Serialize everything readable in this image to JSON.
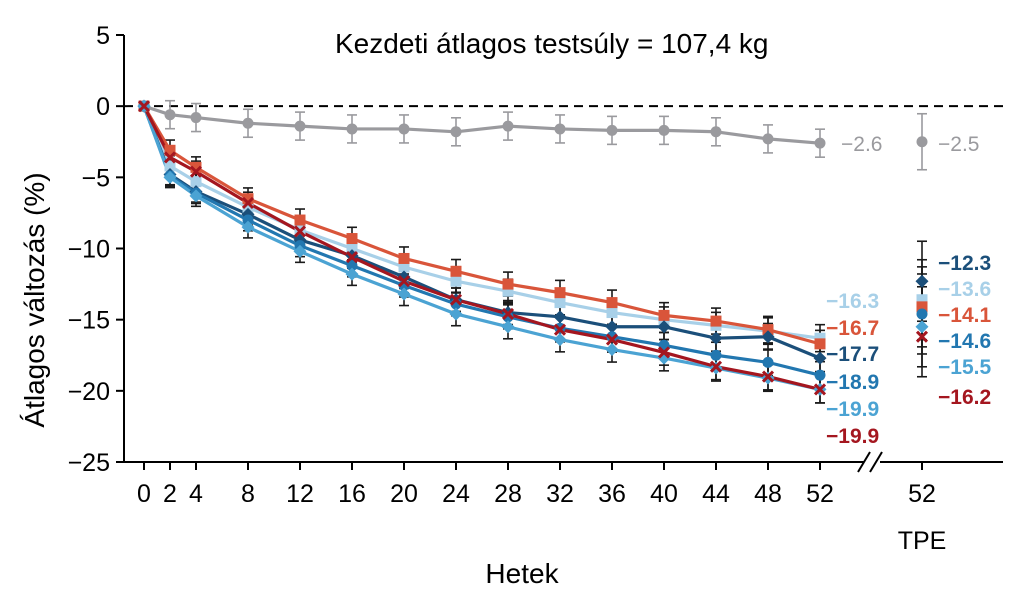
{
  "chart_data": {
    "type": "line",
    "title": "Kezdeti átlagos testsúly = 107,4 kg",
    "xlabel": "Hetek",
    "ylabel": "Átlagos változás (%)",
    "ylim": [
      -25,
      5
    ],
    "yticks": [
      5,
      0,
      -5,
      -10,
      -15,
      -20,
      -25
    ],
    "x": [
      0,
      2,
      4,
      8,
      12,
      16,
      20,
      24,
      28,
      32,
      36,
      40,
      44,
      48,
      52
    ],
    "x_tick_labels": [
      "0",
      "2",
      "4",
      "8",
      "12",
      "16",
      "20",
      "24",
      "28",
      "32",
      "36",
      "40",
      "44",
      "48",
      "52"
    ],
    "tpe_tick_label": "52",
    "tpe_label": "TPE",
    "grid": false,
    "reference_line": 0,
    "series": [
      {
        "color": "#9a9a9e",
        "marker": "circle",
        "values": [
          0,
          -0.6,
          -0.8,
          -1.2,
          -1.4,
          -1.6,
          -1.6,
          -1.8,
          -1.4,
          -1.6,
          -1.7,
          -1.7,
          -1.8,
          -2.3,
          -2.6
        ],
        "end_label": "−2.6",
        "tpe_value": -2.5,
        "tpe_label": "−2.5"
      },
      {
        "color": "#a8d0e8",
        "marker": "square",
        "values": [
          0,
          -4.2,
          -5.3,
          -7.1,
          -8.7,
          -10.0,
          -11.3,
          -12.3,
          -13.0,
          -13.8,
          -14.5,
          -15.0,
          -15.4,
          -15.8,
          -16.3
        ],
        "end_label": "−16.3",
        "tpe_value": -13.6,
        "tpe_label": "−13.6"
      },
      {
        "color": "#d9553a",
        "marker": "square",
        "values": [
          0,
          -3.1,
          -4.3,
          -6.5,
          -8.0,
          -9.3,
          -10.7,
          -11.6,
          -12.5,
          -13.1,
          -13.8,
          -14.7,
          -15.1,
          -15.7,
          -16.7
        ],
        "end_label": "−16.7",
        "tpe_value": -14.1,
        "tpe_label": "−14.1"
      },
      {
        "color": "#1b4f7a",
        "marker": "diamond",
        "values": [
          0,
          -4.8,
          -6.0,
          -7.6,
          -9.4,
          -10.5,
          -12.0,
          -13.6,
          -14.5,
          -14.8,
          -15.5,
          -15.5,
          -16.3,
          -16.2,
          -17.7
        ],
        "end_label": "−17.7",
        "tpe_value": -12.3,
        "tpe_label": "−12.3"
      },
      {
        "color": "#2277b0",
        "marker": "circle",
        "values": [
          0,
          -4.9,
          -6.1,
          -8.0,
          -9.8,
          -11.2,
          -12.6,
          -13.9,
          -14.8,
          -15.6,
          -16.2,
          -16.8,
          -17.5,
          -18.0,
          -18.9
        ],
        "end_label": "−18.9",
        "tpe_value": -14.6,
        "tpe_label": "−14.6"
      },
      {
        "color": "#4ba3d3",
        "marker": "diamond",
        "values": [
          0,
          -5.0,
          -6.3,
          -8.5,
          -10.2,
          -11.8,
          -13.2,
          -14.6,
          -15.5,
          -16.4,
          -17.1,
          -17.7,
          -18.4,
          -19.1,
          -19.9
        ],
        "end_label": "−19.9",
        "tpe_value": -15.5,
        "tpe_label": "−15.5"
      },
      {
        "color": "#a4161f",
        "marker": "cross",
        "values": [
          0,
          -3.6,
          -4.6,
          -6.8,
          -8.8,
          -10.6,
          -12.3,
          -13.6,
          -14.6,
          -15.7,
          -16.4,
          -17.3,
          -18.3,
          -19.0,
          -19.9
        ],
        "end_label": "−19.9",
        "tpe_value": -16.2,
        "tpe_label": "−16.2"
      }
    ]
  }
}
